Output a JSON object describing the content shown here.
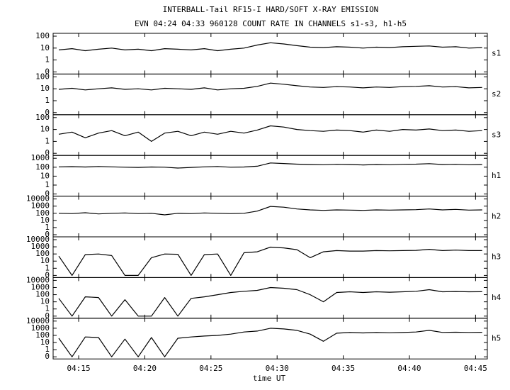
{
  "title": "INTERBALL-Tail RF15-I HARD/SOFT X-RAY EMISSION",
  "subtitle": "EVN 04:24 04:33 960128  COUNT RATE IN CHANNELS s1-s3, h1-h5",
  "xlabel": "time UT",
  "xlim": [
    253.07,
    285.89
  ],
  "xticks": [
    {
      "value": 255,
      "label": "04:15"
    },
    {
      "value": 260,
      "label": "04:20"
    },
    {
      "value": 265,
      "label": "04:25"
    },
    {
      "value": 270,
      "label": "04:30"
    },
    {
      "value": 275,
      "label": "04:35"
    },
    {
      "value": 280,
      "label": "04:40"
    },
    {
      "value": 285,
      "label": "04:45"
    }
  ],
  "x": [
    253.5,
    254.5,
    255.5,
    256.5,
    257.5,
    258.5,
    259.5,
    260.5,
    261.5,
    262.5,
    263.5,
    264.5,
    265.5,
    266.5,
    267.5,
    268.5,
    269.5,
    270.5,
    271.5,
    272.5,
    273.5,
    274.5,
    275.5,
    276.5,
    277.5,
    278.5,
    279.5,
    280.5,
    281.5,
    282.5,
    283.5,
    284.5,
    285.5
  ],
  "chart_data": [
    {
      "type": "line",
      "name": "s1",
      "yscale": "log",
      "color": "#000000",
      "ylim": [
        0,
        100
      ],
      "yticks": [
        0,
        1,
        10,
        100
      ],
      "values": [
        7,
        9,
        6,
        8,
        10,
        7,
        8,
        6,
        9,
        8,
        7,
        9,
        6,
        8,
        10,
        18,
        28,
        22,
        16,
        12,
        11,
        13,
        12,
        10,
        12,
        11,
        13,
        14,
        15,
        12,
        13,
        10,
        11
      ]
    },
    {
      "type": "line",
      "name": "s2",
      "yscale": "log",
      "color": "#000000",
      "ylim": [
        0,
        100
      ],
      "yticks": [
        0,
        1,
        10,
        100
      ],
      "values": [
        9,
        11,
        8,
        10,
        12,
        9,
        10,
        8,
        11,
        10,
        9,
        12,
        8,
        10,
        11,
        16,
        30,
        24,
        18,
        14,
        13,
        15,
        14,
        12,
        14,
        13,
        15,
        16,
        18,
        14,
        15,
        12,
        13
      ]
    },
    {
      "type": "line",
      "name": "s3",
      "yscale": "log",
      "color": "#000000",
      "ylim": [
        0,
        100
      ],
      "yticks": [
        0,
        1,
        10,
        100
      ],
      "values": [
        4,
        6,
        2,
        5,
        8,
        3,
        6,
        1,
        5,
        7,
        3,
        6,
        4,
        7,
        5,
        9,
        20,
        16,
        10,
        8,
        7,
        9,
        8,
        6,
        9,
        7,
        10,
        9,
        11,
        8,
        9,
        7,
        8
      ]
    },
    {
      "type": "line",
      "name": "h1",
      "yscale": "log",
      "color": "#000000",
      "ylim": [
        0,
        1000
      ],
      "yticks": [
        0,
        1,
        10,
        100,
        1000
      ],
      "values": [
        110,
        115,
        105,
        120,
        110,
        100,
        95,
        105,
        100,
        80,
        95,
        110,
        120,
        100,
        105,
        130,
        300,
        260,
        220,
        200,
        190,
        210,
        200,
        180,
        200,
        190,
        210,
        220,
        250,
        200,
        210,
        190,
        200
      ]
    },
    {
      "type": "line",
      "name": "h2",
      "yscale": "log",
      "color": "#000000",
      "ylim": [
        0,
        10000
      ],
      "yticks": [
        0,
        1,
        10,
        100,
        1000,
        10000
      ],
      "values": [
        100,
        90,
        120,
        80,
        100,
        110,
        90,
        100,
        60,
        100,
        90,
        110,
        100,
        90,
        100,
        200,
        900,
        700,
        400,
        300,
        250,
        300,
        280,
        250,
        300,
        280,
        300,
        320,
        400,
        300,
        350,
        280,
        300
      ]
    },
    {
      "type": "line",
      "name": "h3",
      "yscale": "log",
      "color": "#000000",
      "ylim": [
        0,
        10000
      ],
      "yticks": [
        0,
        1,
        10,
        100,
        1000,
        10000
      ],
      "values": [
        50,
        0,
        80,
        100,
        60,
        0,
        0,
        30,
        100,
        90,
        0,
        80,
        100,
        0,
        150,
        200,
        900,
        700,
        400,
        30,
        200,
        300,
        250,
        250,
        300,
        280,
        300,
        320,
        450,
        300,
        350,
        300,
        300
      ]
    },
    {
      "type": "line",
      "name": "h4",
      "yscale": "log",
      "color": "#000000",
      "ylim": [
        0,
        10000
      ],
      "yticks": [
        0,
        1,
        10,
        100,
        1000,
        10000
      ],
      "values": [
        30,
        0,
        50,
        40,
        0,
        20,
        0,
        0,
        40,
        0,
        30,
        50,
        100,
        200,
        300,
        400,
        1000,
        800,
        500,
        100,
        10,
        200,
        250,
        200,
        250,
        220,
        250,
        300,
        500,
        250,
        280,
        250,
        260
      ]
    },
    {
      "type": "line",
      "name": "h5",
      "yscale": "log",
      "color": "#000000",
      "ylim": [
        0,
        10000
      ],
      "yticks": [
        0,
        1,
        10,
        100,
        1000,
        10000
      ],
      "values": [
        40,
        0,
        60,
        50,
        0,
        30,
        0,
        50,
        0,
        40,
        60,
        80,
        100,
        150,
        300,
        400,
        1000,
        800,
        500,
        150,
        15,
        200,
        250,
        220,
        250,
        230,
        250,
        300,
        500,
        260,
        280,
        260,
        270
      ]
    }
  ]
}
